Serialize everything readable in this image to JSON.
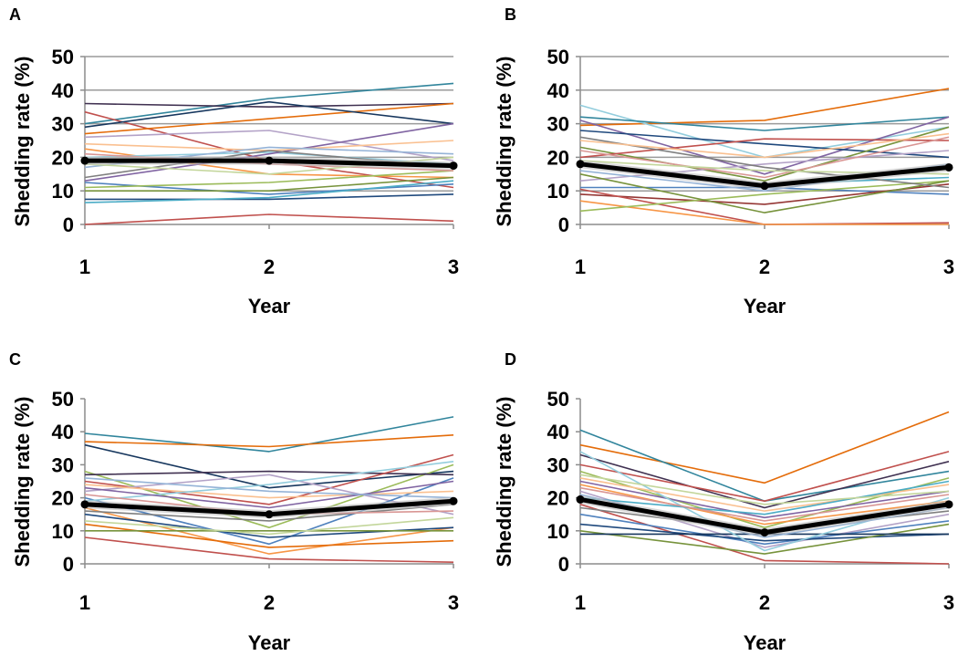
{
  "chart_data": [
    {
      "type": "line",
      "panel_label": "A",
      "title": "",
      "xlabel": "Year",
      "ylabel": "Shedding rate (%)",
      "x": [
        1,
        2,
        3
      ],
      "x_tick_labels": [
        "1",
        "2",
        "3"
      ],
      "ylim": [
        0,
        50
      ],
      "y_ticks": [
        0,
        10,
        20,
        30,
        40,
        50
      ],
      "y_tick_labels": [
        "0",
        "10",
        "20",
        "30",
        "40",
        "50"
      ],
      "grid": true,
      "legend": "none",
      "mean_series": {
        "name": "Mean",
        "values": [
          19,
          19,
          17.5
        ],
        "color": "#000000"
      },
      "series": [
        {
          "name": "s1",
          "values": [
            30,
            37.5,
            42
          ],
          "color": "#31859c"
        },
        {
          "name": "s2",
          "values": [
            36,
            35,
            36
          ],
          "color": "#403151"
        },
        {
          "name": "s3",
          "values": [
            33.5,
            19,
            11
          ],
          "color": "#c0504d"
        },
        {
          "name": "s4",
          "values": [
            27,
            31.5,
            36
          ],
          "color": "#e46c0a"
        },
        {
          "name": "s5",
          "values": [
            29,
            36.5,
            30
          ],
          "color": "#17375e"
        },
        {
          "name": "s6",
          "values": [
            26,
            28,
            19
          ],
          "color": "#b3a2c7"
        },
        {
          "name": "s7",
          "values": [
            22.5,
            15,
            14
          ],
          "color": "#f79646"
        },
        {
          "name": "s8",
          "values": [
            20,
            21.5,
            18
          ],
          "color": "#93cddd"
        },
        {
          "name": "s9",
          "values": [
            13,
            21,
            30
          ],
          "color": "#8064a2"
        },
        {
          "name": "s10",
          "values": [
            12.5,
            9,
            12
          ],
          "color": "#4f81bd"
        },
        {
          "name": "s11",
          "values": [
            11,
            12.5,
            16
          ],
          "color": "#9bbb59"
        },
        {
          "name": "s12",
          "values": [
            10,
            10,
            14
          ],
          "color": "#77933c"
        },
        {
          "name": "s13",
          "values": [
            7.5,
            7.5,
            9
          ],
          "color": "#1f497d"
        },
        {
          "name": "s14",
          "values": [
            6.5,
            8,
            13
          ],
          "color": "#4bacc6"
        },
        {
          "name": "s15",
          "values": [
            0,
            3,
            1
          ],
          "color": "#c0504d"
        },
        {
          "name": "s16",
          "values": [
            24,
            22,
            25
          ],
          "color": "#fac090"
        },
        {
          "name": "s17",
          "values": [
            17,
            23,
            21
          ],
          "color": "#95b3d7"
        },
        {
          "name": "s18",
          "values": [
            14,
            22,
            17
          ],
          "color": "#7f7f7f"
        },
        {
          "name": "s19",
          "values": [
            21,
            18,
            16
          ],
          "color": "#d99694"
        },
        {
          "name": "s20",
          "values": [
            18,
            15,
            20
          ],
          "color": "#c3d69b"
        }
      ]
    },
    {
      "type": "line",
      "panel_label": "B",
      "title": "",
      "xlabel": "Year",
      "ylabel": "Shedding rate (%)",
      "x": [
        1,
        2,
        3
      ],
      "x_tick_labels": [
        "1",
        "2",
        "3"
      ],
      "ylim": [
        0,
        50
      ],
      "y_ticks": [
        0,
        10,
        20,
        30,
        40,
        50
      ],
      "y_tick_labels": [
        "0",
        "10",
        "20",
        "30",
        "40",
        "50"
      ],
      "grid": true,
      "legend": "none",
      "mean_series": {
        "name": "Mean",
        "values": [
          18,
          11.5,
          17
        ],
        "color": "#000000"
      },
      "series": [
        {
          "name": "s1",
          "values": [
            29.5,
            31,
            40.5
          ],
          "color": "#e46c0a"
        },
        {
          "name": "s2",
          "values": [
            35.5,
            20,
            29
          ],
          "color": "#93cddd"
        },
        {
          "name": "s3",
          "values": [
            32,
            28,
            32
          ],
          "color": "#31859c"
        },
        {
          "name": "s4",
          "values": [
            31,
            15,
            32
          ],
          "color": "#8064a2"
        },
        {
          "name": "s5",
          "values": [
            28,
            24,
            20
          ],
          "color": "#1f497d"
        },
        {
          "name": "s6",
          "values": [
            23,
            13,
            29
          ],
          "color": "#77933c"
        },
        {
          "name": "s7",
          "values": [
            20,
            25.5,
            25
          ],
          "color": "#c0504d"
        },
        {
          "name": "s8",
          "values": [
            18,
            12,
            14
          ],
          "color": "#4bacc6"
        },
        {
          "name": "s9",
          "values": [
            13,
            18,
            22
          ],
          "color": "#b3a2c7"
        },
        {
          "name": "s10",
          "values": [
            11,
            11,
            9
          ],
          "color": "#4f81bd"
        },
        {
          "name": "s11",
          "values": [
            9,
            6,
            12
          ],
          "color": "#953735"
        },
        {
          "name": "s12",
          "values": [
            10.5,
            0,
            0.5
          ],
          "color": "#c0504d"
        },
        {
          "name": "s13",
          "values": [
            7,
            0,
            0
          ],
          "color": "#f79646"
        },
        {
          "name": "s14",
          "values": [
            4,
            9,
            13
          ],
          "color": "#9bbb59"
        },
        {
          "name": "s15",
          "values": [
            15,
            3.5,
            13
          ],
          "color": "#77933c"
        },
        {
          "name": "s16",
          "values": [
            26,
            17,
            11
          ],
          "color": "#7f7f7f"
        },
        {
          "name": "s17",
          "values": [
            22,
            14,
            26
          ],
          "color": "#d99694"
        },
        {
          "name": "s18",
          "values": [
            25,
            20,
            27
          ],
          "color": "#fac090"
        },
        {
          "name": "s19",
          "values": [
            16,
            10,
            18
          ],
          "color": "#95b3d7"
        },
        {
          "name": "s20",
          "values": [
            19,
            16,
            15
          ],
          "color": "#c3d69b"
        }
      ]
    },
    {
      "type": "line",
      "panel_label": "C",
      "title": "",
      "xlabel": "Year",
      "ylabel": "Shedding rate (%)",
      "x": [
        1,
        2,
        3
      ],
      "x_tick_labels": [
        "1",
        "2",
        "3"
      ],
      "ylim": [
        0,
        50
      ],
      "y_ticks": [
        0,
        10,
        20,
        30,
        40,
        50
      ],
      "y_tick_labels": [
        "0",
        "10",
        "20",
        "30",
        "40",
        "50"
      ],
      "grid": false,
      "legend": "none",
      "mean_series": {
        "name": "Mean",
        "values": [
          18,
          15,
          19
        ],
        "color": "#000000"
      },
      "series": [
        {
          "name": "s1",
          "values": [
            39.5,
            34,
            44.5
          ],
          "color": "#31859c"
        },
        {
          "name": "s2",
          "values": [
            37,
            35.5,
            39
          ],
          "color": "#e46c0a"
        },
        {
          "name": "s3",
          "values": [
            36,
            23,
            28
          ],
          "color": "#17375e"
        },
        {
          "name": "s4",
          "values": [
            28,
            11,
            30
          ],
          "color": "#9bbb59"
        },
        {
          "name": "s5",
          "values": [
            27,
            28,
            27
          ],
          "color": "#403151"
        },
        {
          "name": "s6",
          "values": [
            25,
            18,
            33
          ],
          "color": "#c0504d"
        },
        {
          "name": "s7",
          "values": [
            22,
            27,
            15
          ],
          "color": "#b3a2c7"
        },
        {
          "name": "s8",
          "values": [
            20,
            6,
            26
          ],
          "color": "#4f81bd"
        },
        {
          "name": "s9",
          "values": [
            17,
            3,
            11
          ],
          "color": "#f79646"
        },
        {
          "name": "s10",
          "values": [
            15,
            8,
            11
          ],
          "color": "#1f497d"
        },
        {
          "name": "s11",
          "values": [
            12,
            5,
            7
          ],
          "color": "#e46c0a"
        },
        {
          "name": "s12",
          "values": [
            10,
            10,
            10
          ],
          "color": "#77933c"
        },
        {
          "name": "s13",
          "values": [
            8,
            1.5,
            0.5
          ],
          "color": "#c0504d"
        },
        {
          "name": "s14",
          "values": [
            24,
            20,
            22
          ],
          "color": "#fac090"
        },
        {
          "name": "s15",
          "values": [
            19,
            24,
            31
          ],
          "color": "#93cddd"
        },
        {
          "name": "s16",
          "values": [
            23,
            17,
            25
          ],
          "color": "#8064a2"
        },
        {
          "name": "s17",
          "values": [
            16,
            13,
            18
          ],
          "color": "#7f7f7f"
        },
        {
          "name": "s18",
          "values": [
            21,
            15,
            16
          ],
          "color": "#d99694"
        },
        {
          "name": "s19",
          "values": [
            26,
            22,
            20
          ],
          "color": "#95b3d7"
        },
        {
          "name": "s20",
          "values": [
            13,
            9,
            14
          ],
          "color": "#c3d69b"
        }
      ]
    },
    {
      "type": "line",
      "panel_label": "D",
      "title": "",
      "xlabel": "Year",
      "ylabel": "Shedding rate (%)",
      "x": [
        1,
        2,
        3
      ],
      "x_tick_labels": [
        "1",
        "2",
        "3"
      ],
      "ylim": [
        0,
        50
      ],
      "y_ticks": [
        0,
        10,
        20,
        30,
        40,
        50
      ],
      "y_tick_labels": [
        "0",
        "10",
        "20",
        "30",
        "40",
        "50"
      ],
      "grid": false,
      "legend": "none",
      "mean_series": {
        "name": "Mean",
        "values": [
          19.5,
          9.5,
          18
        ],
        "color": "#000000"
      },
      "series": [
        {
          "name": "s1",
          "values": [
            36,
            24.5,
            46
          ],
          "color": "#e46c0a"
        },
        {
          "name": "s2",
          "values": [
            40.5,
            19,
            28
          ],
          "color": "#31859c"
        },
        {
          "name": "s3",
          "values": [
            33,
            17,
            31
          ],
          "color": "#403151"
        },
        {
          "name": "s4",
          "values": [
            30,
            19,
            34
          ],
          "color": "#c0504d"
        },
        {
          "name": "s5",
          "values": [
            28,
            11,
            26
          ],
          "color": "#9bbb59"
        },
        {
          "name": "s6",
          "values": [
            25,
            14,
            22
          ],
          "color": "#8064a2"
        },
        {
          "name": "s7",
          "values": [
            22,
            5,
            15
          ],
          "color": "#b3a2c7"
        },
        {
          "name": "s8",
          "values": [
            18,
            1,
            0
          ],
          "color": "#c0504d"
        },
        {
          "name": "s9",
          "values": [
            15,
            6,
            13
          ],
          "color": "#4f81bd"
        },
        {
          "name": "s10",
          "values": [
            12,
            7,
            9
          ],
          "color": "#1f497d"
        },
        {
          "name": "s11",
          "values": [
            10,
            3,
            12
          ],
          "color": "#77933c"
        },
        {
          "name": "s12",
          "values": [
            9,
            9,
            9
          ],
          "color": "#17375e"
        },
        {
          "name": "s13",
          "values": [
            34,
            4,
            20
          ],
          "color": "#93cddd"
        },
        {
          "name": "s14",
          "values": [
            26,
            16,
            24
          ],
          "color": "#fac090"
        },
        {
          "name": "s15",
          "values": [
            24,
            12,
            19
          ],
          "color": "#f79646"
        },
        {
          "name": "s16",
          "values": [
            20,
            15,
            25
          ],
          "color": "#4bacc6"
        },
        {
          "name": "s17",
          "values": [
            17,
            10,
            16
          ],
          "color": "#7f7f7f"
        },
        {
          "name": "s18",
          "values": [
            23,
            13,
            21
          ],
          "color": "#d99694"
        },
        {
          "name": "s19",
          "values": [
            21,
            8,
            17
          ],
          "color": "#95b3d7"
        },
        {
          "name": "s20",
          "values": [
            27,
            18,
            22
          ],
          "color": "#c3d69b"
        }
      ]
    }
  ]
}
